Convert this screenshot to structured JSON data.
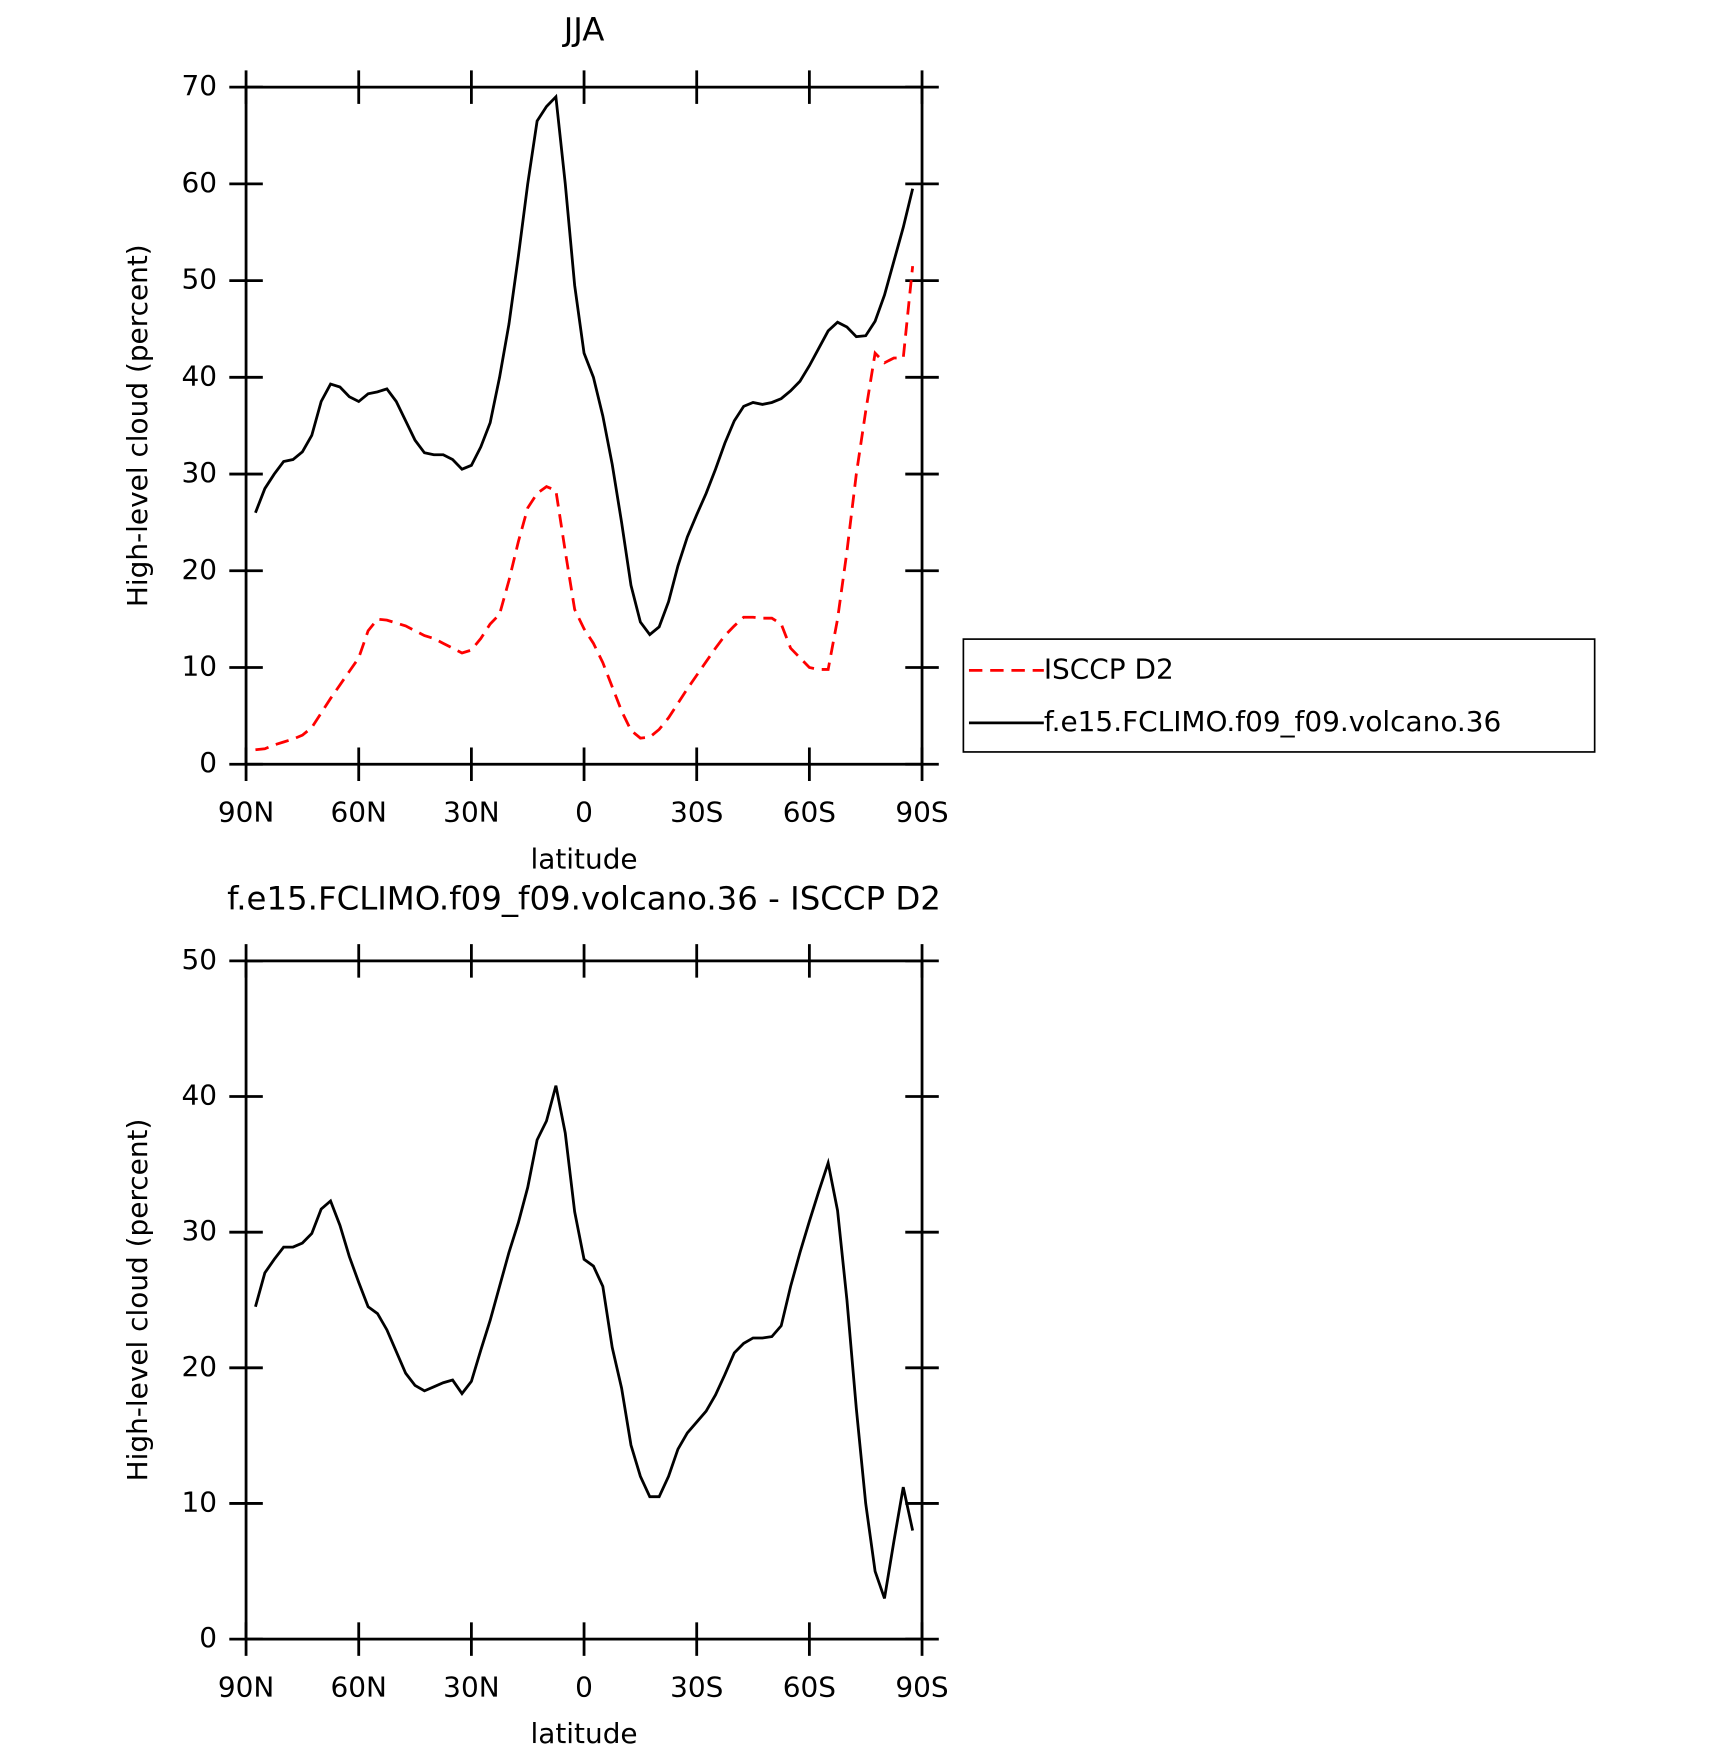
{
  "chart_data": [
    {
      "type": "line",
      "title": "JJA",
      "x_label": "latitude",
      "y_label": "High-level cloud (percent)",
      "x": [
        87.5,
        85,
        82.5,
        80,
        77.5,
        75,
        72.5,
        70,
        67.5,
        65,
        62.5,
        60,
        57.5,
        55,
        52.5,
        50,
        47.5,
        45,
        42.5,
        40,
        37.5,
        35,
        32.5,
        30,
        27.5,
        25,
        22.5,
        20,
        17.5,
        15,
        12.5,
        10,
        7.5,
        5,
        2.5,
        0,
        -2.5,
        -5,
        -7.5,
        -10,
        -12.5,
        -15,
        -17.5,
        -20,
        -22.5,
        -25,
        -27.5,
        -30,
        -32.5,
        -35,
        -37.5,
        -40,
        -42.5,
        -45,
        -47.5,
        -50,
        -52.5,
        -55,
        -57.5,
        -60,
        -62.5,
        -65,
        -67.5,
        -70,
        -72.5,
        -75,
        -77.5,
        -80,
        -82.5,
        -85,
        -87.5
      ],
      "series": [
        {
          "name": "ISCCP D2",
          "color": "#ff0000",
          "dashed": true,
          "values": [
            1.5,
            1.6,
            2,
            2.3,
            2.6,
            3,
            3.8,
            5.3,
            6.8,
            8.2,
            9.6,
            11,
            13.8,
            15,
            14.9,
            14.6,
            14.3,
            13.8,
            13.3,
            13,
            12.5,
            12,
            11.5,
            11.8,
            13,
            14.5,
            15.5,
            19,
            23,
            26.5,
            28,
            28.7,
            28.3,
            22,
            16,
            14,
            12.5,
            10.5,
            8,
            5.5,
            3.5,
            2.7,
            2.8,
            3.6,
            4.8,
            6.3,
            7.8,
            9.2,
            10.6,
            12,
            13.3,
            14.3,
            15.2,
            15.2,
            15.1,
            15.1,
            14.5,
            12,
            11,
            10,
            9.8,
            9.8,
            15,
            22,
            30,
            36.5,
            42.5,
            41.5,
            42,
            42,
            51.5
          ]
        },
        {
          "name": "f.e15.FCLIMO.f09_f09.volcano.36",
          "color": "#000000",
          "dashed": false,
          "values": [
            26,
            28.5,
            30,
            31.3,
            31.5,
            32.3,
            34,
            37.5,
            39.3,
            39,
            38,
            37.5,
            38.3,
            38.5,
            38.8,
            37.5,
            35.5,
            33.5,
            32.2,
            32,
            32,
            31.5,
            30.5,
            30.9,
            32.8,
            35.3,
            40,
            45.5,
            52.5,
            60,
            66.5,
            68,
            69,
            60,
            49.5,
            42.5,
            40,
            36,
            31,
            25,
            18.5,
            14.7,
            13.4,
            14.2,
            16.8,
            20.5,
            23.5,
            25.8,
            28,
            30.5,
            33.2,
            35.5,
            37,
            37.4,
            37.2,
            37.4,
            37.8,
            38.6,
            39.6,
            41.2,
            43,
            44.8,
            45.7,
            45.2,
            44.2,
            44.3,
            45.8,
            48.5,
            52,
            55.5,
            59.5
          ]
        }
      ],
      "xlim": [
        90,
        -90
      ],
      "xticks": [
        {
          "value": 90,
          "label": "90N"
        },
        {
          "value": 60,
          "label": "60N"
        },
        {
          "value": 30,
          "label": "30N"
        },
        0,
        {
          "value": -30,
          "label": "30S"
        },
        {
          "value": -60,
          "label": "60S"
        },
        {
          "value": -90,
          "label": "90S"
        }
      ],
      "ylim": [
        0,
        70
      ],
      "yticks": [
        0,
        10,
        20,
        30,
        40,
        50,
        60,
        70
      ],
      "legend": "right"
    },
    {
      "type": "line",
      "title": "f.e15.FCLIMO.f09_f09.volcano.36 - ISCCP D2",
      "x_label": "latitude",
      "y_label": "High-level cloud (percent)",
      "x": [
        87.5,
        85,
        82.5,
        80,
        77.5,
        75,
        72.5,
        70,
        67.5,
        65,
        62.5,
        60,
        57.5,
        55,
        52.5,
        50,
        47.5,
        45,
        42.5,
        40,
        37.5,
        35,
        32.5,
        30,
        27.5,
        25,
        22.5,
        20,
        17.5,
        15,
        12.5,
        10,
        7.5,
        5,
        2.5,
        0,
        -2.5,
        -5,
        -7.5,
        -10,
        -12.5,
        -15,
        -17.5,
        -20,
        -22.5,
        -25,
        -27.5,
        -30,
        -32.5,
        -35,
        -37.5,
        -40,
        -42.5,
        -45,
        -47.5,
        -50,
        -52.5,
        -55,
        -57.5,
        -60,
        -62.5,
        -65,
        -67.5,
        -70,
        -72.5,
        -75,
        -77.5,
        -80,
        -82.5,
        -85,
        -87.5
      ],
      "series": [
        {
          "color": "#000000",
          "dashed": false,
          "values": [
            24.5,
            27,
            28,
            28.9,
            28.9,
            29.2,
            29.9,
            31.7,
            32.3,
            30.5,
            28.2,
            26.3,
            24.5,
            24,
            22.8,
            21.2,
            19.6,
            18.7,
            18.3,
            18.6,
            18.9,
            19.1,
            18.1,
            19,
            21.3,
            23.5,
            26,
            28.5,
            30.7,
            33.3,
            36.8,
            38.2,
            40.8,
            37.3,
            31.5,
            28,
            27.5,
            26,
            21.5,
            18.5,
            14.3,
            12,
            10.5,
            10.5,
            12,
            14,
            15.2,
            16,
            16.8,
            18,
            19.5,
            21.1,
            21.8,
            22.2,
            22.2,
            22.3,
            23.1,
            26,
            28.5,
            30.8,
            33,
            35.1,
            31.6,
            25,
            17,
            10,
            5,
            3,
            7.2,
            11.2,
            8
          ]
        }
      ],
      "xlim": [
        90,
        -90
      ],
      "xticks": [
        {
          "value": 90,
          "label": "90N"
        },
        {
          "value": 60,
          "label": "60N"
        },
        {
          "value": 30,
          "label": "30N"
        },
        0,
        {
          "value": -30,
          "label": "30S"
        },
        {
          "value": -60,
          "label": "60S"
        },
        {
          "value": -90,
          "label": "90S"
        }
      ],
      "ylim": [
        0,
        50
      ],
      "yticks": [
        0,
        10,
        20,
        30,
        40,
        50
      ]
    }
  ]
}
